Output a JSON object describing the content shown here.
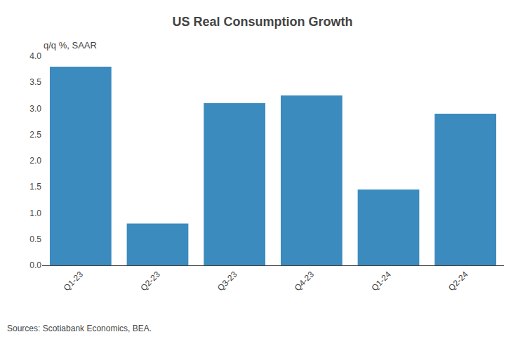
{
  "chart_data": {
    "type": "bar",
    "title": "US Real Consumption Growth",
    "subtitle": "q/q %, SAAR",
    "source": "Sources: Scotiabank Economics, BEA.",
    "categories": [
      "Q1-23",
      "Q2-23",
      "Q3-23",
      "Q4-23",
      "Q1-24",
      "Q2-24"
    ],
    "values": [
      3.8,
      0.8,
      3.1,
      3.25,
      1.45,
      2.9
    ],
    "color": "#3b8bbf",
    "ylim": [
      0.0,
      4.0
    ],
    "yticks": [
      {
        "value": 0,
        "label": "0.0"
      },
      0.5,
      {
        "value": 1,
        "label": "1.0"
      },
      1.5,
      {
        "value": 2,
        "label": "2.0"
      },
      2.5,
      {
        "value": 3,
        "label": "3.0"
      },
      3.5,
      {
        "value": 4,
        "label": "4.0"
      }
    ],
    "grid": false
  }
}
